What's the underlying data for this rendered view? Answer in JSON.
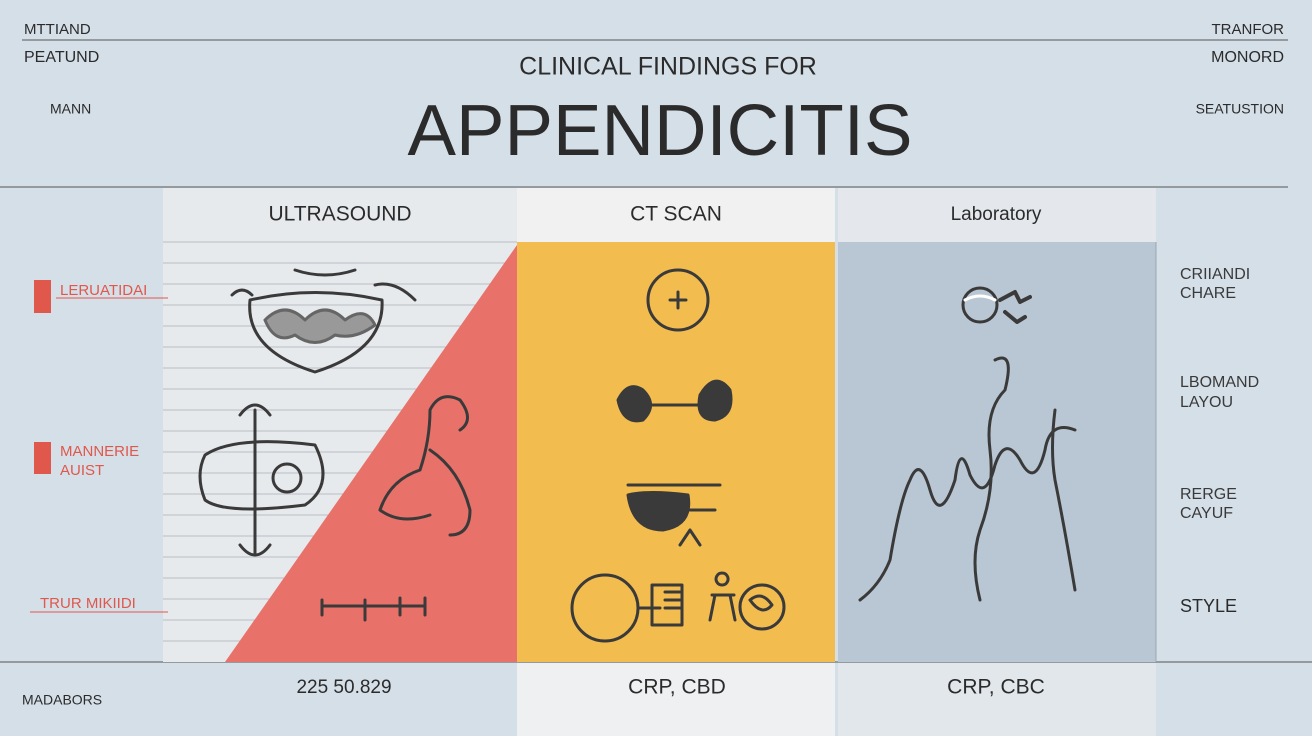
{
  "header": {
    "left": [
      "MTTIAND",
      "PEATUND",
      "MANN"
    ],
    "right": [
      "TRANFOR",
      "MONORD",
      "SEATUSTION"
    ],
    "subtitle": "CLINICAL FINDINGS FOR",
    "title": "APPENDICITIS"
  },
  "columns": [
    {
      "heading": "ULTRASOUND",
      "footer": "225 50.829"
    },
    {
      "heading": "CT SCAN",
      "footer": "CRP, CBD"
    },
    {
      "heading": "Laboratory",
      "footer": "CRP, CBC"
    }
  ],
  "left_labels": [
    [
      "LERUATIDAI"
    ],
    [
      "MANNERIE",
      "AUIST"
    ],
    [
      "TRUR MIKIIDI"
    ]
  ],
  "right_labels": [
    [
      "CRIIANDI",
      "CHARE"
    ],
    [
      "LBOMAND",
      "LAYOU"
    ],
    [
      "RERGE",
      "CAYUF"
    ],
    [
      "STYLE"
    ]
  ],
  "footer_label": "MADABORS"
}
